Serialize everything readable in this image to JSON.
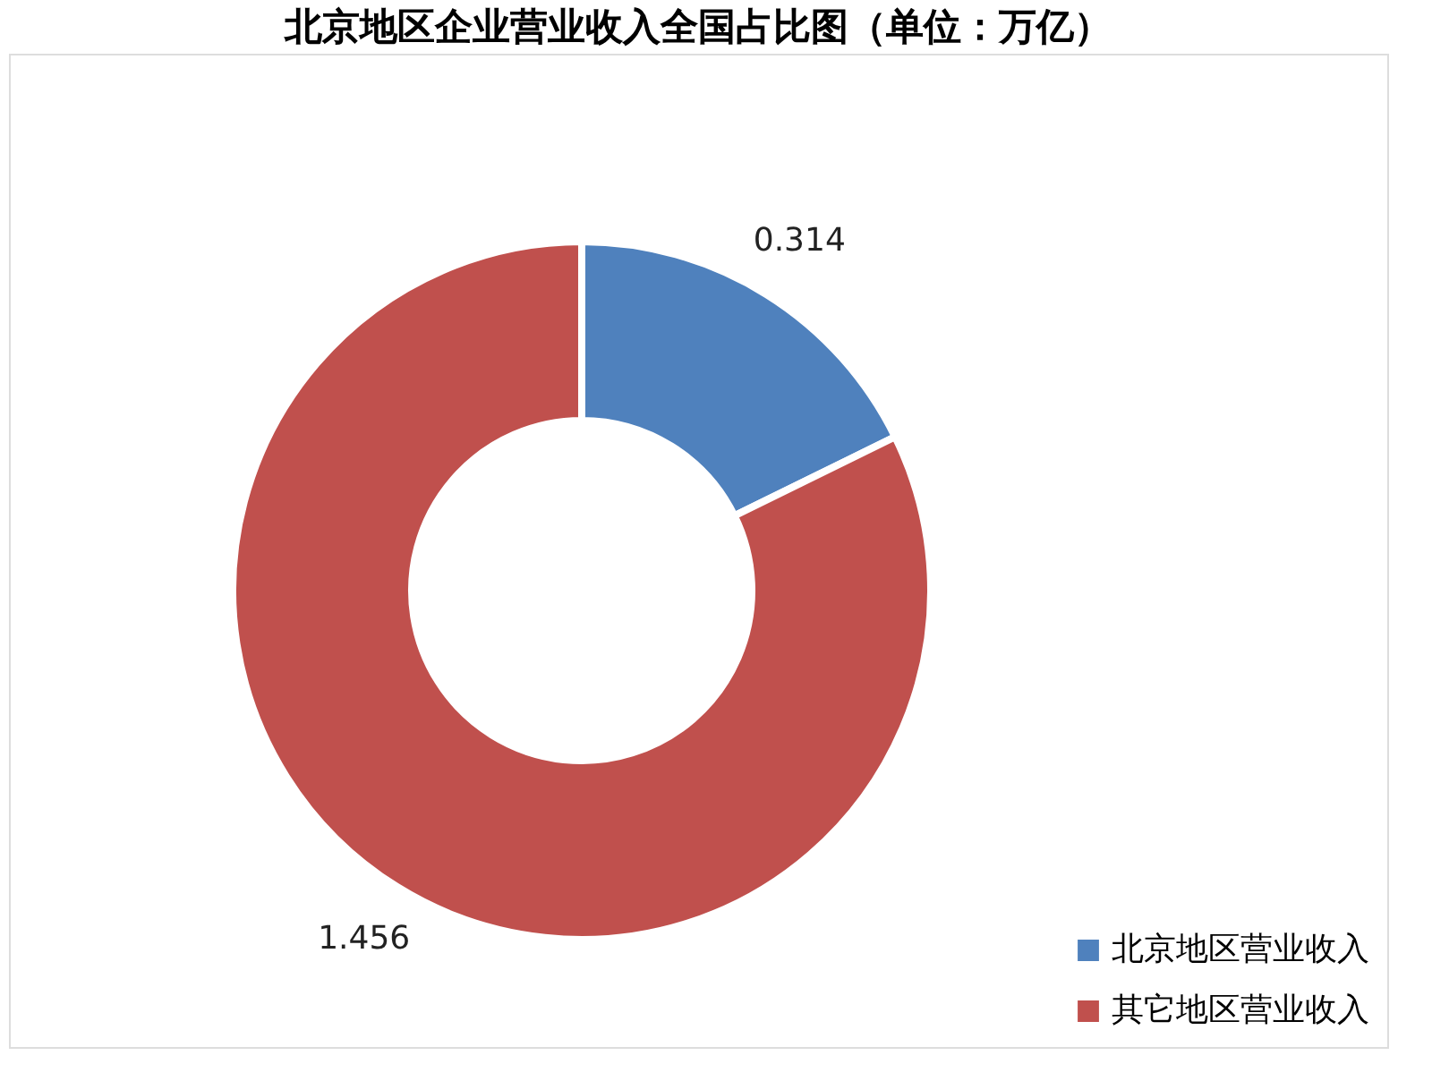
{
  "chart_data": {
    "type": "donut",
    "title": "北京地区企业营业收入全国占比图（单位：万亿）",
    "categories": [
      "北京地区营业收入",
      "其它地区营业收入"
    ],
    "values": [
      0.314,
      1.456
    ],
    "colors": [
      "#4f81bd",
      "#c0504d"
    ],
    "data_labels": true,
    "legend": "bottom right"
  }
}
